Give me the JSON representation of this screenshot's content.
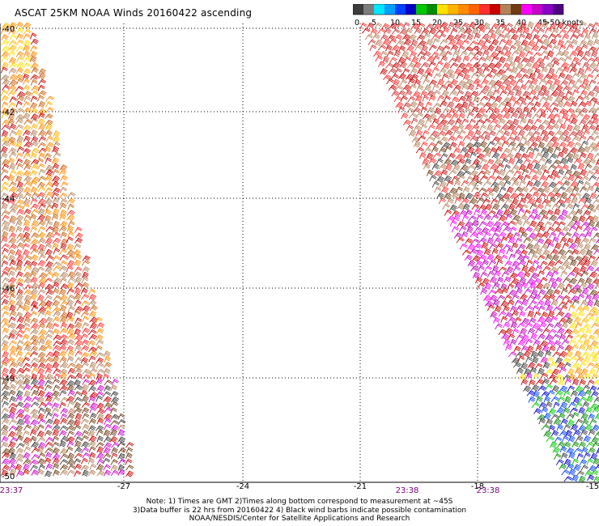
{
  "title": "ASCAT 25KM NOAA Winds 20160422 ascending",
  "legend": {
    "segments": [
      {
        "color": "#3c3c3c"
      },
      {
        "color": "#7d7d7d"
      },
      {
        "color": "#00e6ff"
      },
      {
        "color": "#00a0ff"
      },
      {
        "color": "#0040ff"
      },
      {
        "color": "#0000c8"
      },
      {
        "color": "#00c800"
      },
      {
        "color": "#008c00"
      },
      {
        "color": "#ffe100"
      },
      {
        "color": "#ffb400"
      },
      {
        "color": "#ff8c00"
      },
      {
        "color": "#ff6400"
      },
      {
        "color": "#ff2d2d"
      },
      {
        "color": "#c80000"
      },
      {
        "color": "#b4825a"
      },
      {
        "color": "#6e3c14"
      },
      {
        "color": "#ff00ff"
      },
      {
        "color": "#c800c8"
      },
      {
        "color": "#8c00c8"
      },
      {
        "color": "#500082"
      }
    ],
    "labels": [
      "0",
      "5",
      "10",
      "15",
      "20",
      "25",
      "30",
      "35",
      "40",
      "45",
      ">50 knots"
    ]
  },
  "axes": {
    "lat_labels": [
      "-40",
      "-42",
      "-44",
      "-46",
      "-48",
      "-50"
    ],
    "lon_labels": [
      "-27",
      "-24",
      "-21",
      "-18",
      "-15"
    ]
  },
  "pass_times": [
    "23:37",
    "23:38",
    "23:38"
  ],
  "notes": [
    "Note: 1) Times are GMT 2)Times along bottom correspond to measurement at ~45S",
    "3)Data buffer is 22 hrs from 20160422 4) Black wind barbs indicate possible contamination",
    "NOAA/NESDIS/Center for Satellite Applications and Research"
  ]
}
